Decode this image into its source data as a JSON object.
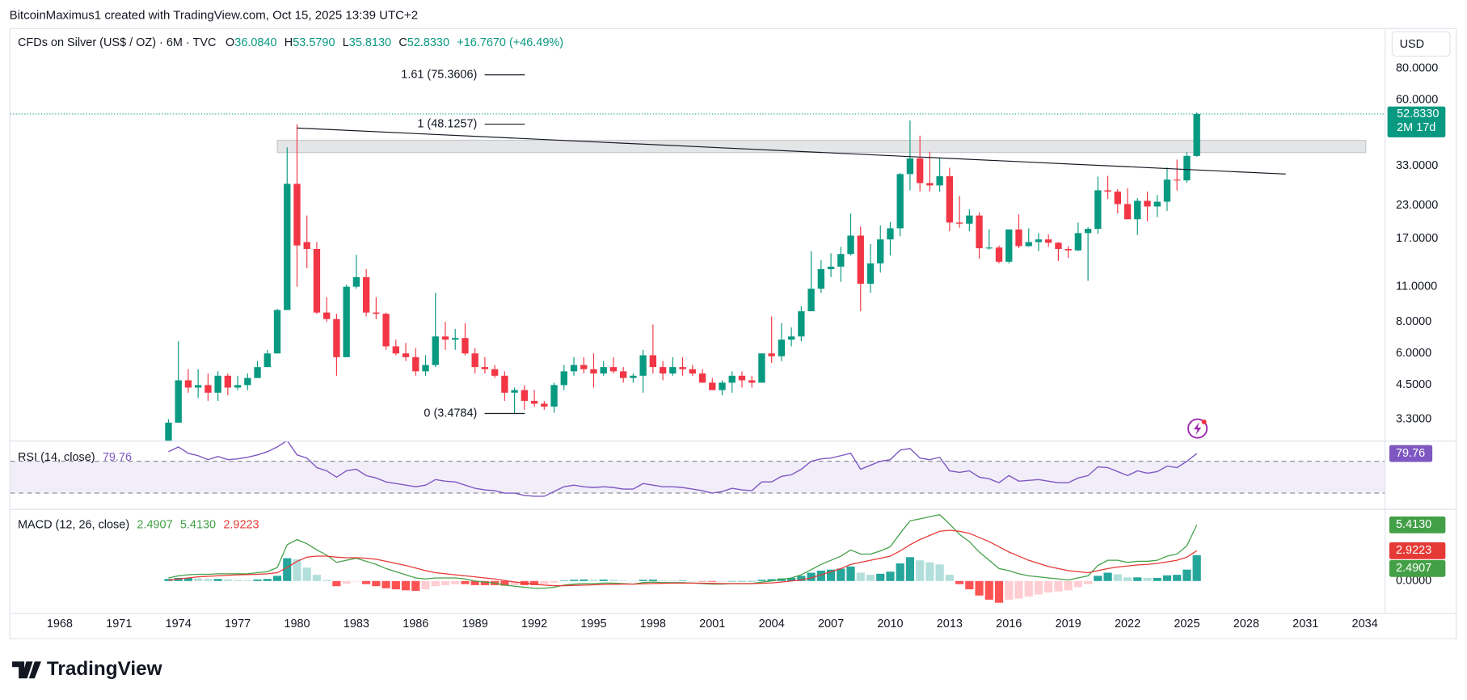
{
  "header": {
    "credit": "BitcoinMaximus1 created with TradingView.com, Oct 15, 2025 13:39 UTC+2",
    "brand": "TradingView"
  },
  "chart_data": {
    "type": "candlestick",
    "title": "CFDs on Silver (US$ / OZ) · 6M · TVC",
    "ohlc": [
      {
        "key": "O",
        "value": "36.0840"
      },
      {
        "key": "H",
        "value": "53.5790"
      },
      {
        "key": "L",
        "value": "35.8130"
      },
      {
        "key": "C",
        "value": "52.8330"
      }
    ],
    "change": "+16.7670 (+46.49%)",
    "currency": "USD",
    "last_price_label": "52.8330",
    "countdown": "2M 17d",
    "log_scale": true,
    "up_color": "#089981",
    "down_color": "#f23645",
    "xlim": [
      1965.5,
      2035
    ],
    "xticks": [
      1968,
      1971,
      1974,
      1977,
      1980,
      1983,
      1986,
      1989,
      1992,
      1995,
      1998,
      2001,
      2004,
      2007,
      2010,
      2013,
      2016,
      2019,
      2022,
      2025,
      2028,
      2031,
      2034
    ],
    "ylim": [
      2.716,
      114.3
    ],
    "yticks": [
      {
        "value": 80,
        "label": "80.0000"
      },
      {
        "value": 60,
        "label": "60.0000"
      },
      {
        "value": 33,
        "label": "33.0000"
      },
      {
        "value": 23,
        "label": "23.0000"
      },
      {
        "value": 17,
        "label": "17.0000"
      },
      {
        "value": 11,
        "label": "11.0000"
      },
      {
        "value": 8,
        "label": "8.0000"
      },
      {
        "value": 6,
        "label": "6.0000"
      },
      {
        "value": 4.5,
        "label": "4.5000"
      },
      {
        "value": 3.3,
        "label": "3.3000"
      }
    ],
    "candles": {
      "x": [
        1973.5,
        1974,
        1974.5,
        1975,
        1975.5,
        1976,
        1976.5,
        1977,
        1977.5,
        1978,
        1978.5,
        1979,
        1979.5,
        1980,
        1980.5,
        1981,
        1981.5,
        1982,
        1982.5,
        1983,
        1983.5,
        1984,
        1984.5,
        1985,
        1985.5,
        1986,
        1986.5,
        1987,
        1987.5,
        1988,
        1988.5,
        1989,
        1989.5,
        1990,
        1990.5,
        1991,
        1991.5,
        1992,
        1992.5,
        1993,
        1993.5,
        1994,
        1994.5,
        1995,
        1995.5,
        1996,
        1996.5,
        1997,
        1997.5,
        1998,
        1998.5,
        1999,
        1999.5,
        2000,
        2000.5,
        2001,
        2001.5,
        2002,
        2002.5,
        2003,
        2003.5,
        2004,
        2004.5,
        2005,
        2005.5,
        2006,
        2006.5,
        2007,
        2007.5,
        2008,
        2008.5,
        2009,
        2009.5,
        2010,
        2010.5,
        2011,
        2011.5,
        2012,
        2012.5,
        2013,
        2013.5,
        2014,
        2014.5,
        2015,
        2015.5,
        2016,
        2016.5,
        2017,
        2017.5,
        2018,
        2018.5,
        2019,
        2019.5,
        2020,
        2020.5,
        2021,
        2021.5,
        2022,
        2022.5,
        2023,
        2023.5,
        2024,
        2024.5,
        2025,
        2025.5
      ],
      "open": [
        2.6,
        3.2,
        4.7,
        4.4,
        4.5,
        4.2,
        4.9,
        4.4,
        4.5,
        4.8,
        5.3,
        6.0,
        8.9,
        28,
        16.5,
        15.5,
        8.7,
        8.2,
        5.8,
        11,
        12,
        8.7,
        8.6,
        6.4,
        6.0,
        5.8,
        5.1,
        5.4,
        7.0,
        6.8,
        6.9,
        6.0,
        5.3,
        5.2,
        4.9,
        4.2,
        4.3,
        3.9,
        3.8,
        3.7,
        4.5,
        5.1,
        5.4,
        5.2,
        5.0,
        5.3,
        5.1,
        4.8,
        4.9,
        5.9,
        5.3,
        5.0,
        5.3,
        5.2,
        5.0,
        4.6,
        4.3,
        4.6,
        4.9,
        4.7,
        4.6,
        6.0,
        5.85,
        6.8,
        7.0,
        8.8,
        10.8,
        12.9,
        13.2,
        14.8,
        17.5,
        11.3,
        13.6,
        16.9,
        18.7,
        30.6,
        35.3,
        28.2,
        27.6,
        30.0,
        19.7,
        19.5,
        21.0,
        15.6,
        15.7,
        13.8,
        18.5,
        15.9,
        16.5,
        16.9,
        16.4,
        15.5,
        15.3,
        17.9,
        18.6,
        26.4,
        26.1,
        23.3,
        20.3,
        24.0,
        22.8,
        23.8,
        29.1,
        28.9,
        36.084
      ],
      "high": [
        3.3,
        6.7,
        5.2,
        5.2,
        5.0,
        5.1,
        5.0,
        4.9,
        5.0,
        5.6,
        6.2,
        9.0,
        39,
        48.1257,
        21,
        16.5,
        10,
        8.6,
        11.2,
        14.7,
        12.9,
        10,
        8.7,
        6.8,
        6.6,
        6.3,
        5.9,
        10.4,
        8.0,
        7.5,
        7.9,
        6.3,
        5.8,
        5.4,
        5.1,
        4.4,
        4.5,
        4.3,
        3.9,
        4.6,
        5.4,
        5.8,
        5.8,
        6.0,
        5.6,
        5.8,
        5.3,
        5.0,
        6.2,
        7.8,
        5.6,
        5.8,
        5.8,
        5.4,
        5.2,
        4.8,
        4.7,
        5.1,
        5.1,
        4.9,
        6.0,
        8.4,
        7.9,
        7.6,
        9.2,
        15.2,
        14.0,
        14.9,
        15.8,
        21.4,
        19,
        16.2,
        19.2,
        19.8,
        30.9,
        49.8,
        43.4,
        37.5,
        35.4,
        32.4,
        25.1,
        22.2,
        21.6,
        18.5,
        16.0,
        18.4,
        21.2,
        18.7,
        17.9,
        17.7,
        16.5,
        15.9,
        19.7,
        18.9,
        29.9,
        30.1,
        26.7,
        26.9,
        24.6,
        26.1,
        25.3,
        32.5,
        34.9,
        37.3,
        53.579
      ],
      "low": [
        2.5,
        3.2,
        4.2,
        4.0,
        3.9,
        3.9,
        4.1,
        4.3,
        4.3,
        4.8,
        5.3,
        6.0,
        8.9,
        11,
        13,
        8.6,
        8.0,
        4.9,
        5.8,
        10.8,
        8.4,
        8.2,
        6.2,
        5.9,
        5.6,
        4.9,
        4.9,
        5.3,
        6.2,
        6.2,
        5.9,
        5.0,
        5.0,
        4.8,
        3.9,
        3.4784,
        3.6,
        3.7,
        3.6,
        3.5,
        4.3,
        4.9,
        5.0,
        4.4,
        4.9,
        5.0,
        4.6,
        4.6,
        4.2,
        5.0,
        4.7,
        4.9,
        4.9,
        4.9,
        4.6,
        4.3,
        4.1,
        4.2,
        4.4,
        4.4,
        4.6,
        5.5,
        5.6,
        6.4,
        6.7,
        8.8,
        10.4,
        12.0,
        11.5,
        14.6,
        8.8,
        10.4,
        12.5,
        14.6,
        17.4,
        26.4,
        26.1,
        26.1,
        26.1,
        18.2,
        18.8,
        18.2,
        14.2,
        15.4,
        13.6,
        13.6,
        15.6,
        15.8,
        15.2,
        15.8,
        13.9,
        14.3,
        15.2,
        11.6,
        17.8,
        24.4,
        21.4,
        20.3,
        17.6,
        19.9,
        20.7,
        21.9,
        26.4,
        28.3,
        35.813
      ],
      "close": [
        3.2,
        4.7,
        4.4,
        4.5,
        4.2,
        4.9,
        4.4,
        4.5,
        4.8,
        5.3,
        6.0,
        8.9,
        28,
        16,
        15.5,
        8.7,
        8.2,
        5.8,
        11,
        12,
        8.7,
        8.6,
        6.4,
        6.0,
        5.8,
        5.1,
        5.4,
        7.0,
        6.8,
        6.9,
        6.0,
        5.3,
        5.2,
        4.9,
        4.2,
        4.3,
        3.9,
        3.8,
        3.7,
        4.5,
        5.1,
        5.4,
        5.2,
        5.0,
        5.3,
        5.1,
        4.8,
        4.9,
        5.9,
        5.3,
        5.0,
        5.3,
        5.2,
        5.0,
        4.6,
        4.3,
        4.6,
        4.9,
        4.7,
        4.6,
        6.0,
        5.85,
        6.8,
        7.0,
        8.8,
        10.8,
        12.9,
        13.2,
        14.8,
        17.5,
        11.3,
        13.6,
        16.9,
        18.7,
        30.6,
        35.3,
        28.2,
        27.6,
        30.0,
        19.7,
        19.5,
        21.0,
        15.6,
        15.7,
        13.8,
        18.5,
        15.9,
        16.5,
        16.9,
        16.4,
        15.5,
        15.3,
        17.9,
        18.6,
        26.4,
        26.1,
        23.3,
        20.3,
        24.0,
        22.8,
        23.8,
        29.1,
        28.9,
        36.1,
        52.833
      ]
    },
    "fib_levels": [
      {
        "label": "1.61 (75.3606)",
        "value": 75.3606
      },
      {
        "label": "1 (48.1257)",
        "value": 48.1257
      },
      {
        "label": "0 (3.4784)",
        "value": 3.4784
      }
    ],
    "trendline": {
      "x": [
        1980,
        2030
      ],
      "y": [
        46.5,
        30.6
      ]
    },
    "zone": {
      "x": [
        1979,
        2034.05
      ],
      "y": [
        37.2,
        41.6
      ]
    },
    "rsi": {
      "name": "RSI (14, close)",
      "color": "#7e57c2",
      "ylim": [
        11.2,
        94.7
      ],
      "levels": [
        70,
        30
      ],
      "values": [
        82,
        88,
        80,
        77,
        72,
        76,
        72,
        73,
        75,
        78,
        82,
        88,
        96,
        78,
        74,
        62,
        58,
        50,
        58,
        60,
        52,
        49,
        44,
        42,
        40,
        38,
        40,
        47,
        45,
        44,
        40,
        36,
        34,
        33,
        30,
        30,
        27,
        26,
        26,
        32,
        38,
        40,
        38,
        37,
        38,
        37,
        35,
        35,
        42,
        40,
        38,
        38,
        37,
        35,
        33,
        30,
        32,
        36,
        34,
        33,
        44,
        44,
        51,
        53,
        60,
        70,
        73,
        74,
        77,
        80,
        60,
        65,
        70,
        72,
        84,
        86,
        74,
        72,
        75,
        58,
        56,
        58,
        50,
        48,
        43,
        52,
        45,
        46,
        47,
        45,
        43,
        43,
        49,
        52,
        63,
        62,
        57,
        52,
        58,
        55,
        57,
        64,
        62,
        70,
        79.76
      ]
    },
    "macd": {
      "name": "MACD (12, 26, close)",
      "ylim": [
        -3.07,
        6.86
      ],
      "yticks": [
        {
          "value": 0,
          "label": "0.0000"
        }
      ],
      "histogram": {
        "label": "2.4907",
        "colors": [
          "#26a69a",
          "#b2dfdb",
          "#ff5252",
          "#ffcdd2"
        ],
        "values": [
          0.2,
          0.3,
          0.3,
          0.25,
          0.2,
          0.2,
          0.15,
          0.1,
          0.08,
          0.15,
          0.2,
          0.5,
          2.2,
          2.1,
          1.3,
          0.6,
          0.1,
          -0.5,
          -0.25,
          -0.05,
          -0.3,
          -0.5,
          -0.7,
          -0.8,
          -0.9,
          -0.95,
          -0.8,
          -0.5,
          -0.4,
          -0.3,
          -0.3,
          -0.4,
          -0.4,
          -0.4,
          -0.45,
          -0.4,
          -0.4,
          -0.4,
          -0.3,
          -0.15,
          0.05,
          0.12,
          0.15,
          0.12,
          0.14,
          0.12,
          0.05,
          0,
          0.12,
          0.14,
          0.07,
          0.05,
          0.05,
          0,
          -0.04,
          -0.07,
          -0.05,
          0,
          0,
          0,
          0.12,
          0.18,
          0.25,
          0.3,
          0.5,
          0.8,
          1.0,
          1.1,
          1.2,
          1.4,
          0.8,
          0.6,
          0.7,
          0.9,
          1.7,
          2.3,
          2.0,
          1.8,
          1.6,
          0.6,
          -0.3,
          -0.8,
          -1.4,
          -1.8,
          -2.1,
          -1.8,
          -1.7,
          -1.5,
          -1.3,
          -1.1,
          -1.0,
          -0.9,
          -0.6,
          -0.3,
          0.5,
          0.8,
          0.65,
          0.35,
          0.35,
          0.3,
          0.3,
          0.55,
          0.6,
          1.1,
          2.4907
        ]
      },
      "series": [
        {
          "name": "MACD",
          "label": "5.4130",
          "color": "#43a047",
          "values": [
            0.3,
            0.5,
            0.6,
            0.65,
            0.65,
            0.7,
            0.7,
            0.7,
            0.7,
            0.8,
            0.9,
            1.3,
            3.5,
            4.0,
            3.6,
            3.0,
            2.5,
            1.8,
            2.0,
            2.2,
            1.9,
            1.6,
            1.2,
            0.9,
            0.6,
            0.3,
            0.2,
            0.3,
            0.3,
            0.3,
            0.2,
            0,
            -0.1,
            -0.2,
            -0.4,
            -0.5,
            -0.6,
            -0.7,
            -0.7,
            -0.6,
            -0.4,
            -0.3,
            -0.25,
            -0.25,
            -0.2,
            -0.2,
            -0.25,
            -0.3,
            -0.15,
            -0.1,
            -0.15,
            -0.15,
            -0.15,
            -0.2,
            -0.25,
            -0.3,
            -0.3,
            -0.25,
            -0.25,
            -0.25,
            -0.1,
            0,
            0.15,
            0.3,
            0.6,
            1.1,
            1.6,
            2.0,
            2.4,
            3.0,
            2.6,
            2.6,
            2.9,
            3.3,
            4.6,
            5.8,
            6.0,
            6.2,
            6.4,
            5.5,
            4.5,
            3.8,
            2.8,
            2.0,
            1.2,
            1.0,
            0.7,
            0.5,
            0.4,
            0.3,
            0.2,
            0.1,
            0.3,
            0.5,
            1.5,
            2.0,
            2.0,
            1.8,
            1.9,
            1.9,
            2.0,
            2.4,
            2.6,
            3.4,
            5.413
          ]
        },
        {
          "name": "Signal",
          "label": "2.9223",
          "color": "#e53935",
          "values": [
            0.1,
            0.2,
            0.3,
            0.4,
            0.45,
            0.5,
            0.55,
            0.6,
            0.62,
            0.65,
            0.7,
            0.8,
            1.3,
            1.9,
            2.3,
            2.4,
            2.4,
            2.3,
            2.25,
            2.25,
            2.2,
            2.1,
            1.9,
            1.7,
            1.5,
            1.25,
            1.0,
            0.8,
            0.7,
            0.6,
            0.5,
            0.4,
            0.3,
            0.2,
            0.05,
            -0.1,
            -0.2,
            -0.3,
            -0.4,
            -0.45,
            -0.45,
            -0.42,
            -0.4,
            -0.37,
            -0.34,
            -0.32,
            -0.3,
            -0.3,
            -0.27,
            -0.24,
            -0.22,
            -0.2,
            -0.2,
            -0.2,
            -0.21,
            -0.23,
            -0.25,
            -0.25,
            -0.25,
            -0.25,
            -0.22,
            -0.18,
            -0.1,
            0,
            0.1,
            0.3,
            0.6,
            0.9,
            1.2,
            1.6,
            1.8,
            2.0,
            2.2,
            2.4,
            2.9,
            3.5,
            4.0,
            4.4,
            4.8,
            4.9,
            4.8,
            4.6,
            4.2,
            3.8,
            3.3,
            2.8,
            2.4,
            2.0,
            1.7,
            1.4,
            1.2,
            1.0,
            0.9,
            0.8,
            1.0,
            1.2,
            1.35,
            1.45,
            1.55,
            1.6,
            1.7,
            1.85,
            2.0,
            2.3,
            2.9223
          ]
        }
      ]
    }
  }
}
